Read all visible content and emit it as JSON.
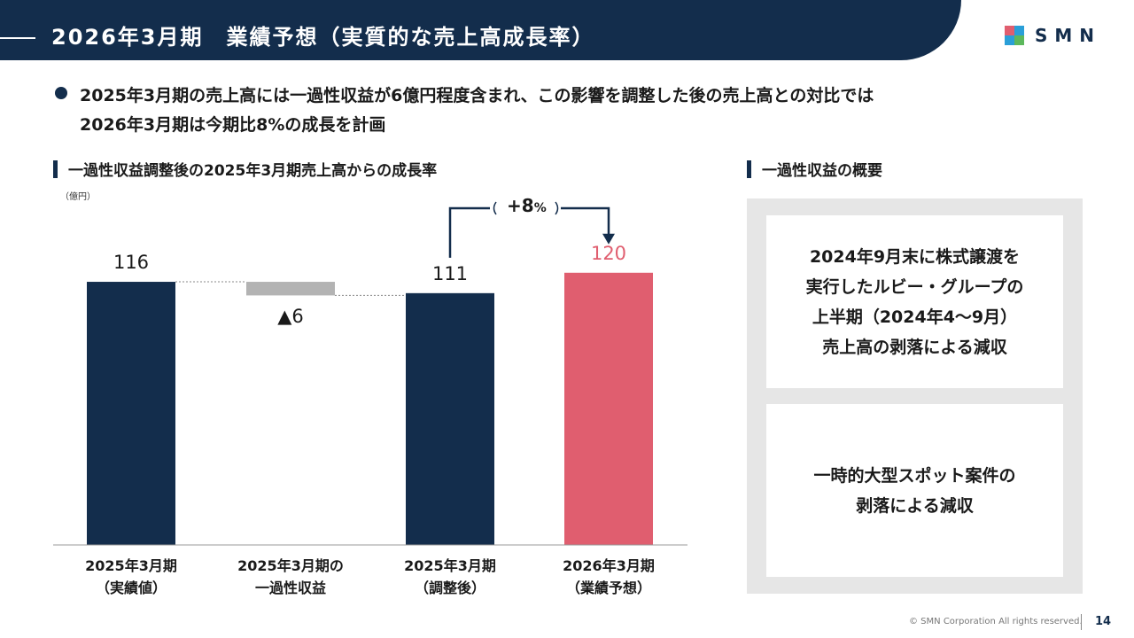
{
  "header": {
    "title": "2026年3月期　業績予想（実質的な売上高成長率）",
    "logo_text": "SMN"
  },
  "lead": {
    "line1": "2025年3月期の売上高には一過性収益が6億円程度含まれ、この影響を調整した後の売上高との対比では",
    "line2": "2026年3月期は今期比8%の成長を計画"
  },
  "left_section": {
    "heading": "一過性収益調整後の2025年3月期売上高からの成長率",
    "unit": "（億円）"
  },
  "right_section": {
    "heading": "一過性収益の概要",
    "box1": [
      "2024年9月末に株式譲渡を",
      "実行したルビー・グループの",
      "上半期（2024年4～9月）",
      "売上高の剥落による減収"
    ],
    "box2": [
      "一時的大型スポット案件の",
      "剥落による減収"
    ]
  },
  "chart_data": {
    "type": "bar",
    "subtype": "waterfall",
    "categories": [
      [
        "2025年3月期",
        "（実績値）"
      ],
      [
        "2025年3月期の",
        "一過性収益"
      ],
      [
        "2025年3月期",
        "（調整後）"
      ],
      [
        "2026年3月期",
        "（業績予想）"
      ]
    ],
    "values": [
      116,
      -6,
      111,
      120
    ],
    "value_labels": [
      "116",
      "▲6",
      "111",
      "120"
    ],
    "bar_colors": [
      "#132d4c",
      "#b3b3b3",
      "#132d4c",
      "#e05e6f"
    ],
    "value_label_colors": [
      "#1a1a1a",
      "#1a1a1a",
      "#1a1a1a",
      "#e05e6f"
    ],
    "growth_annotation": {
      "value": "+8",
      "unit": "%",
      "from_index": 2,
      "to_index": 3
    },
    "ylabel": "（億円）",
    "ylim": [
      0,
      120
    ]
  },
  "footer": {
    "copyright": "© SMN Corporation All rights reserved.",
    "page_number": "14"
  },
  "colors": {
    "navy": "#132d4c",
    "red": "#e05e6f",
    "gray": "#b3b3b3",
    "panel_gray": "#e6e6e6"
  }
}
